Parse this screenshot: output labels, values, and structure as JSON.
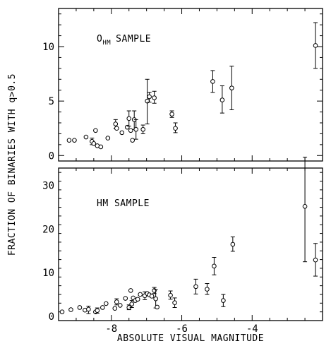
{
  "figure": {
    "ylabel": "FRACTION OF BINARIES WITH q>0.5",
    "xlabel": "ABSOLUTE VISUAL MAGNITUDE"
  },
  "chart_data": [
    {
      "type": "scatter",
      "panel_label": "O",
      "panel_label_sub": "HM",
      "panel_label_rest": "SAMPLE",
      "title": "",
      "xlabel": "ABSOLUTE VISUAL MAGNITUDE",
      "ylabel": "FRACTION OF BINARIES WITH q>0.5",
      "xlim": [
        -9.5,
        -2
      ],
      "ylim": [
        -0.5,
        13.5
      ],
      "x_ticks": [
        -8,
        -6,
        -4
      ],
      "x_tick_labels": [
        "-8",
        "-6",
        "-4"
      ],
      "y_ticks": [
        0,
        5,
        10
      ],
      "y_tick_labels": [
        "0",
        "5",
        "10"
      ],
      "grid": false,
      "series": [
        {
          "marker": "open-circle",
          "points": [
            {
              "x": -9.2,
              "y": 1.4
            },
            {
              "x": -9.05,
              "y": 1.4
            },
            {
              "x": -8.72,
              "y": 1.7
            },
            {
              "x": -8.55,
              "y": 1.3,
              "yerr": [
                1.0,
                1.6
              ]
            },
            {
              "x": -8.5,
              "y": 1.1
            },
            {
              "x": -8.45,
              "y": 2.3
            },
            {
              "x": -8.4,
              "y": 0.9
            },
            {
              "x": -8.3,
              "y": 0.8
            },
            {
              "x": -8.1,
              "y": 1.6
            },
            {
              "x": -7.88,
              "y": 2.9,
              "yerr": [
                2.5,
                3.3
              ]
            },
            {
              "x": -7.85,
              "y": 2.5
            },
            {
              "x": -7.7,
              "y": 2.1
            },
            {
              "x": -7.55,
              "y": 2.6
            },
            {
              "x": -7.5,
              "y": 3.4,
              "yerr": [
                2.7,
                4.1
              ]
            },
            {
              "x": -7.45,
              "y": 2.3
            },
            {
              "x": -7.4,
              "y": 1.4
            },
            {
              "x": -7.35,
              "y": 3.3,
              "yerr": [
                2.4,
                4.1
              ]
            },
            {
              "x": -7.3,
              "y": 2.4,
              "yerr": [
                1.5,
                3.3
              ]
            },
            {
              "x": -7.1,
              "y": 2.4,
              "yerr": [
                2.0,
                2.8
              ]
            },
            {
              "x": -6.98,
              "y": 5.0,
              "yerr": [
                2.9,
                7.0
              ]
            },
            {
              "x": -6.92,
              "y": 5.4,
              "yerr": [
                4.9,
                5.8
              ]
            },
            {
              "x": -6.78,
              "y": 5.3,
              "yerr": [
                4.8,
                5.9
              ]
            },
            {
              "x": -6.28,
              "y": 3.8,
              "yerr": [
                3.5,
                4.1
              ]
            },
            {
              "x": -6.18,
              "y": 2.5,
              "yerr": [
                2.1,
                3.0
              ]
            },
            {
              "x": -5.12,
              "y": 6.8,
              "yerr": [
                5.8,
                7.8
              ]
            },
            {
              "x": -4.85,
              "y": 5.1,
              "yerr": [
                3.9,
                6.4
              ]
            },
            {
              "x": -4.58,
              "y": 6.2,
              "yerr": [
                4.2,
                8.2
              ]
            },
            {
              "x": -2.2,
              "y": 10.1,
              "yerr": [
                8.0,
                12.2
              ]
            }
          ]
        }
      ]
    },
    {
      "type": "scatter",
      "panel_label": "HM SAMPLE",
      "title": "",
      "xlabel": "ABSOLUTE VISUAL MAGNITUDE",
      "ylabel": "FRACTION OF BINARIES WITH q>0.5",
      "xlim": [
        -9.5,
        -2
      ],
      "ylim": [
        -1,
        34
      ],
      "x_ticks": [
        -8,
        -6,
        -4
      ],
      "x_tick_labels": [
        "-8",
        "-6",
        "-4"
      ],
      "y_ticks": [
        0,
        10,
        20,
        30
      ],
      "y_tick_labels": [
        "0",
        "10",
        "20",
        "30"
      ],
      "grid": false,
      "series": [
        {
          "marker": "open-circle",
          "points": [
            {
              "x": -9.4,
              "y": 1.0
            },
            {
              "x": -9.15,
              "y": 1.5
            },
            {
              "x": -8.9,
              "y": 2.0
            },
            {
              "x": -8.75,
              "y": 1.4
            },
            {
              "x": -8.65,
              "y": 1.6,
              "yerr": [
                0.6,
                2.3
              ]
            },
            {
              "x": -8.45,
              "y": 1.0
            },
            {
              "x": -8.4,
              "y": 1.3,
              "yerr": [
                0.7,
                1.9
              ]
            },
            {
              "x": -8.25,
              "y": 2.0
            },
            {
              "x": -8.15,
              "y": 2.9
            },
            {
              "x": -7.9,
              "y": 1.8
            },
            {
              "x": -7.85,
              "y": 3.3,
              "yerr": [
                2.6,
                4.0
              ]
            },
            {
              "x": -7.75,
              "y": 2.5
            },
            {
              "x": -7.6,
              "y": 4.1
            },
            {
              "x": -7.5,
              "y": 2.0,
              "yerr": [
                1.5,
                2.6
              ]
            },
            {
              "x": -7.45,
              "y": 5.9
            },
            {
              "x": -7.42,
              "y": 2.8,
              "yerr": [
                2.0,
                3.6
              ]
            },
            {
              "x": -7.38,
              "y": 4.2
            },
            {
              "x": -7.32,
              "y": 3.6
            },
            {
              "x": -7.25,
              "y": 3.9
            },
            {
              "x": -7.18,
              "y": 5.0
            },
            {
              "x": -7.05,
              "y": 4.7,
              "yerr": [
                3.8,
                5.6
              ]
            },
            {
              "x": -6.98,
              "y": 5.2
            },
            {
              "x": -6.92,
              "y": 4.9
            },
            {
              "x": -6.85,
              "y": 4.6
            },
            {
              "x": -6.78,
              "y": 5.9,
              "yerr": [
                5.2,
                6.6
              ]
            },
            {
              "x": -6.74,
              "y": 4.0,
              "yerr": [
                1.9,
                6.1
              ]
            },
            {
              "x": -6.7,
              "y": 2.1
            },
            {
              "x": -6.32,
              "y": 4.8,
              "yerr": [
                3.9,
                5.8
              ]
            },
            {
              "x": -6.2,
              "y": 3.1,
              "yerr": [
                2.0,
                4.2
              ]
            },
            {
              "x": -5.6,
              "y": 6.8,
              "yerr": [
                5.1,
                8.5
              ]
            },
            {
              "x": -5.28,
              "y": 6.2,
              "yerr": [
                5.0,
                7.5
              ]
            },
            {
              "x": -5.08,
              "y": 11.5,
              "yerr": [
                9.5,
                13.5
              ]
            },
            {
              "x": -4.82,
              "y": 3.6,
              "yerr": [
                2.2,
                5.0
              ]
            },
            {
              "x": -4.55,
              "y": 16.5,
              "yerr": [
                14.9,
                18.2
              ]
            },
            {
              "x": -2.5,
              "y": 25.2,
              "yerr": [
                12.5,
                36.5
              ]
            },
            {
              "x": -2.2,
              "y": 12.9,
              "yerr": [
                9.2,
                16.7
              ]
            }
          ]
        }
      ]
    }
  ]
}
